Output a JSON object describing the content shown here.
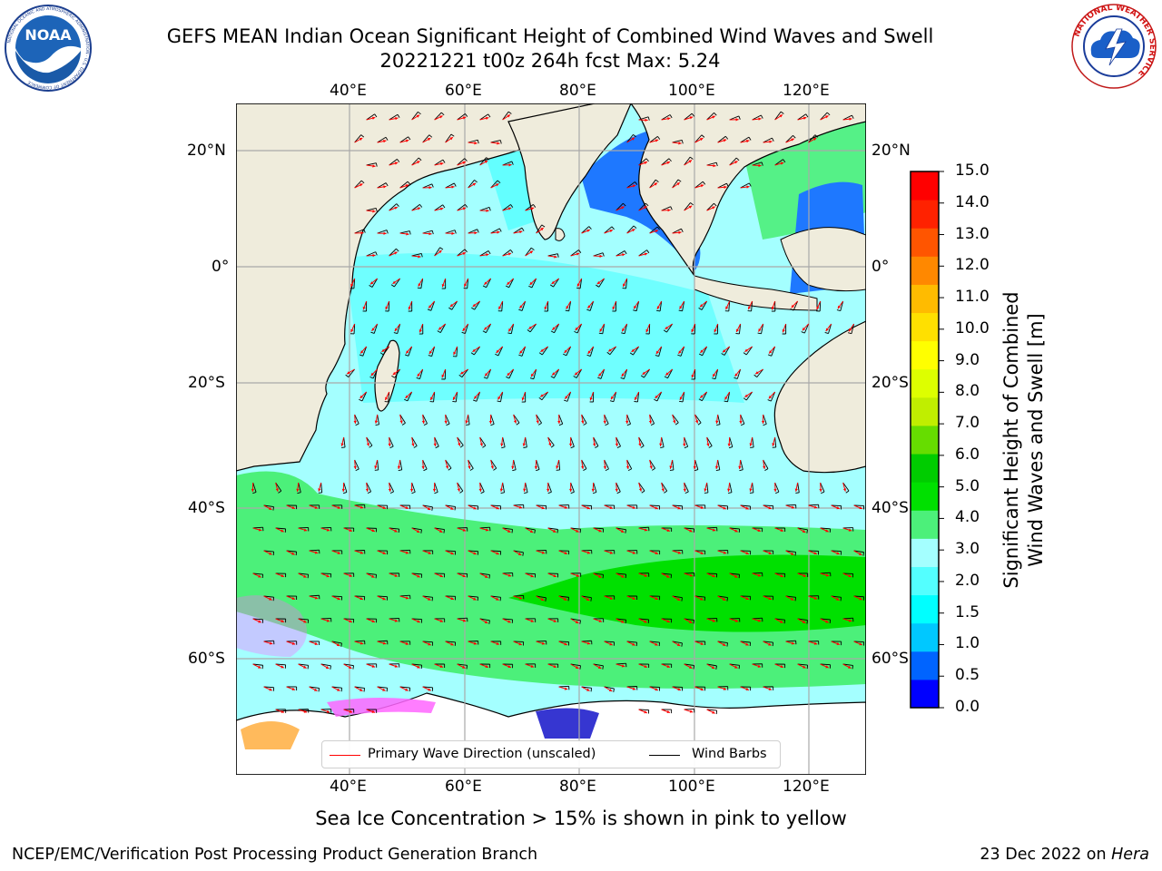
{
  "header": {
    "title_line1": "GEFS MEAN Indian Ocean Significant Height of Combined Wind Waves and Swell",
    "title_line2": "20221221 t00z 264h fcst   Max: 5.24"
  },
  "logos": {
    "noaa_text": "NOAA",
    "noaa_ring_text": "NATIONAL OCEANIC AND ATMOSPHERIC ADMINISTRATION · U.S. DEPARTMENT OF COMMERCE",
    "nws_ring_text": "NATIONAL WEATHER SERVICE"
  },
  "map": {
    "top_lon_labels": [
      "40°E",
      "60°E",
      "80°E",
      "100°E",
      "120°E"
    ],
    "bottom_lon_labels": [
      "40°E",
      "60°E",
      "80°E",
      "100°E",
      "120°E"
    ],
    "left_lat_labels": [
      "20°N",
      "0°",
      "20°S",
      "40°S",
      "60°S"
    ],
    "right_lat_labels": [
      "20°N",
      "0°",
      "20°S",
      "40°S",
      "60°S"
    ],
    "colors": {
      "land": "#efecdc",
      "ocean_low": "#a4ffff",
      "ocean_mid": "#53ffff",
      "wave_3_4": "#4cf07a",
      "wave_4_5": "#00e000",
      "shallow_blue": "#1e78ff",
      "wave_arrow": "#ff0000",
      "wind_barb": "#000000"
    }
  },
  "legend": {
    "wave_label": "Primary Wave Direction (unscaled)",
    "wind_label": "Wind Barbs"
  },
  "colorbar": {
    "title_line1": "Significant Height of Combined",
    "title_line2": "Wind Waves and Swell [m]",
    "ticks": [
      "15.0",
      "14.0",
      "13.0",
      "12.0",
      "11.0",
      "10.0",
      "9.0",
      "8.0",
      "7.0",
      "6.0",
      "5.0",
      "4.0",
      "3.0",
      "2.0",
      "1.5",
      "1.0",
      "0.5",
      "0.0"
    ],
    "colors": [
      "#0000ff",
      "#0064ff",
      "#00c8ff",
      "#00ffff",
      "#53ffff",
      "#a4ffff",
      "#4cf07a",
      "#00e000",
      "#00cc00",
      "#66dd00",
      "#c0ee00",
      "#ddff00",
      "#ffff00",
      "#ffe000",
      "#ffbb00",
      "#ff8800",
      "#ff5500",
      "#ff2200",
      "#ff0000"
    ]
  },
  "notes": {
    "sea_ice": "Sea Ice Concentration > 15% is shown in pink to yellow"
  },
  "footer": {
    "left": "NCEP/EMC/Verification Post Processing Product Generation Branch",
    "date": "23 Dec 2022 on ",
    "machine": "Hera"
  }
}
